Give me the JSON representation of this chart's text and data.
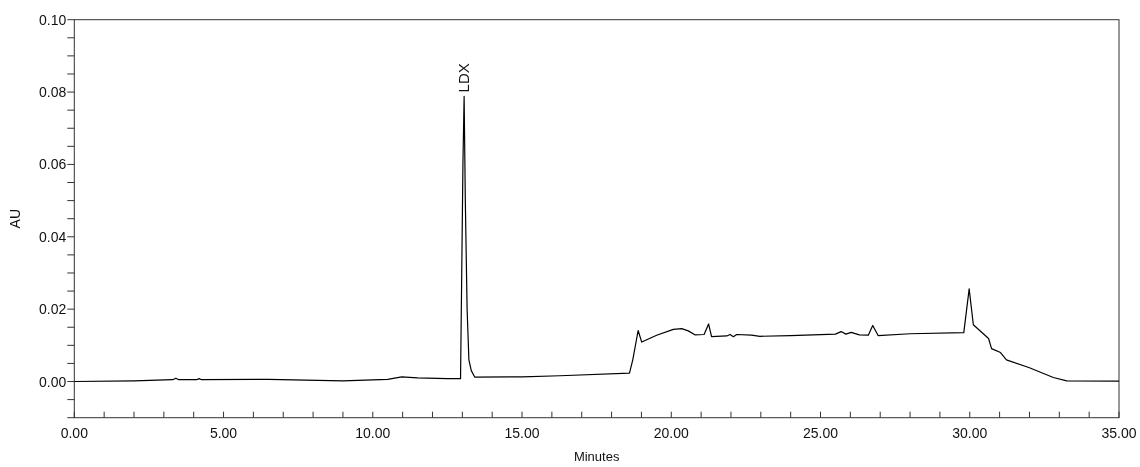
{
  "chart_data": {
    "type": "line",
    "xlabel": "Minutes",
    "ylabel": "AU",
    "xlim": [
      0,
      35
    ],
    "ylim": [
      -0.01,
      0.1
    ],
    "xticks": [
      {
        "value": 0,
        "label": "0.00"
      },
      {
        "value": 1,
        "label": null
      },
      {
        "value": 2,
        "label": null
      },
      {
        "value": 3,
        "label": null
      },
      {
        "value": 4,
        "label": null
      },
      {
        "value": 5,
        "label": "5.00"
      },
      {
        "value": 6,
        "label": null
      },
      {
        "value": 7,
        "label": null
      },
      {
        "value": 8,
        "label": null
      },
      {
        "value": 9,
        "label": null
      },
      {
        "value": 10,
        "label": "10.00"
      },
      {
        "value": 11,
        "label": null
      },
      {
        "value": 12,
        "label": null
      },
      {
        "value": 13,
        "label": null
      },
      {
        "value": 14,
        "label": null
      },
      {
        "value": 15,
        "label": "15.00"
      },
      {
        "value": 16,
        "label": null
      },
      {
        "value": 17,
        "label": null
      },
      {
        "value": 18,
        "label": null
      },
      {
        "value": 19,
        "label": null
      },
      {
        "value": 20,
        "label": "20.00"
      },
      {
        "value": 21,
        "label": null
      },
      {
        "value": 22,
        "label": null
      },
      {
        "value": 23,
        "label": null
      },
      {
        "value": 24,
        "label": null
      },
      {
        "value": 25,
        "label": "25.00"
      },
      {
        "value": 26,
        "label": null
      },
      {
        "value": 27,
        "label": null
      },
      {
        "value": 28,
        "label": null
      },
      {
        "value": 29,
        "label": null
      },
      {
        "value": 30,
        "label": "30.00"
      },
      {
        "value": 31,
        "label": null
      },
      {
        "value": 32,
        "label": null
      },
      {
        "value": 33,
        "label": null
      },
      {
        "value": 34,
        "label": null
      },
      {
        "value": 35,
        "label": "35.00"
      }
    ],
    "yticks": [
      {
        "value": -0.01,
        "label": null
      },
      {
        "value": -0.005,
        "label": null
      },
      {
        "value": 0,
        "label": "0.00"
      },
      {
        "value": 0.005,
        "label": null
      },
      {
        "value": 0.01,
        "label": null
      },
      {
        "value": 0.015,
        "label": null
      },
      {
        "value": 0.02,
        "label": "0.02"
      },
      {
        "value": 0.025,
        "label": null
      },
      {
        "value": 0.03,
        "label": null
      },
      {
        "value": 0.035,
        "label": null
      },
      {
        "value": 0.04,
        "label": "0.04"
      },
      {
        "value": 0.045,
        "label": null
      },
      {
        "value": 0.05,
        "label": null
      },
      {
        "value": 0.055,
        "label": null
      },
      {
        "value": 0.06,
        "label": "0.06"
      },
      {
        "value": 0.065,
        "label": null
      },
      {
        "value": 0.07,
        "label": null
      },
      {
        "value": 0.075,
        "label": null
      },
      {
        "value": 0.08,
        "label": "0.08"
      },
      {
        "value": 0.085,
        "label": null
      },
      {
        "value": 0.09,
        "label": null
      },
      {
        "value": 0.095,
        "label": null
      },
      {
        "value": 0.1,
        "label": "0.10"
      }
    ],
    "grid": false,
    "marker": "none",
    "line_style": "solid",
    "annotations": [
      {
        "text": "LDX",
        "x": 13.06,
        "y": 0.0788
      }
    ],
    "series": [
      {
        "color": "#000000",
        "x": [
          0,
          2,
          3.3,
          3.4,
          3.5,
          4.1,
          4.18,
          4.26,
          6.5,
          9,
          10.5,
          10.97,
          11.5,
          12.5,
          12.94,
          12.98,
          13.02,
          13.06,
          13.1,
          13.16,
          13.22,
          13.3,
          13.42,
          15,
          16.27,
          18.6,
          18.71,
          18.89,
          19.01,
          19.51,
          20.07,
          20.35,
          20.57,
          20.79,
          21.1,
          21.25,
          21.35,
          21.86,
          21.97,
          22.08,
          22.19,
          22.69,
          22.97,
          24,
          25.5,
          25.69,
          25.85,
          26.03,
          26.3,
          26.6,
          26.75,
          26.93,
          28,
          29.8,
          29.98,
          30.12,
          30.63,
          30.73,
          31.03,
          31.23,
          32,
          32.8,
          33.25,
          35
        ],
        "values": [
          0,
          0.0002,
          0.0005,
          0.0009,
          0.0005,
          0.0005,
          0.0008,
          0.0005,
          0.0006,
          0.0002,
          0.0006,
          0.0013,
          0.001,
          0.0008,
          0.0008,
          0.03,
          0.06,
          0.0788,
          0.05,
          0.02,
          0.006,
          0.003,
          0.0012,
          0.0013,
          0.0016,
          0.0023,
          0.006,
          0.0141,
          0.0109,
          0.0128,
          0.0144,
          0.0146,
          0.014,
          0.0129,
          0.013,
          0.0159,
          0.0124,
          0.0126,
          0.013,
          0.0124,
          0.013,
          0.0128,
          0.0125,
          0.0127,
          0.0131,
          0.0138,
          0.0131,
          0.0136,
          0.0129,
          0.0128,
          0.0155,
          0.0127,
          0.0132,
          0.0135,
          0.0256,
          0.0157,
          0.0119,
          0.0091,
          0.008,
          0.006,
          0.0038,
          0.0011,
          0.0002,
          0.0001
        ]
      }
    ]
  }
}
